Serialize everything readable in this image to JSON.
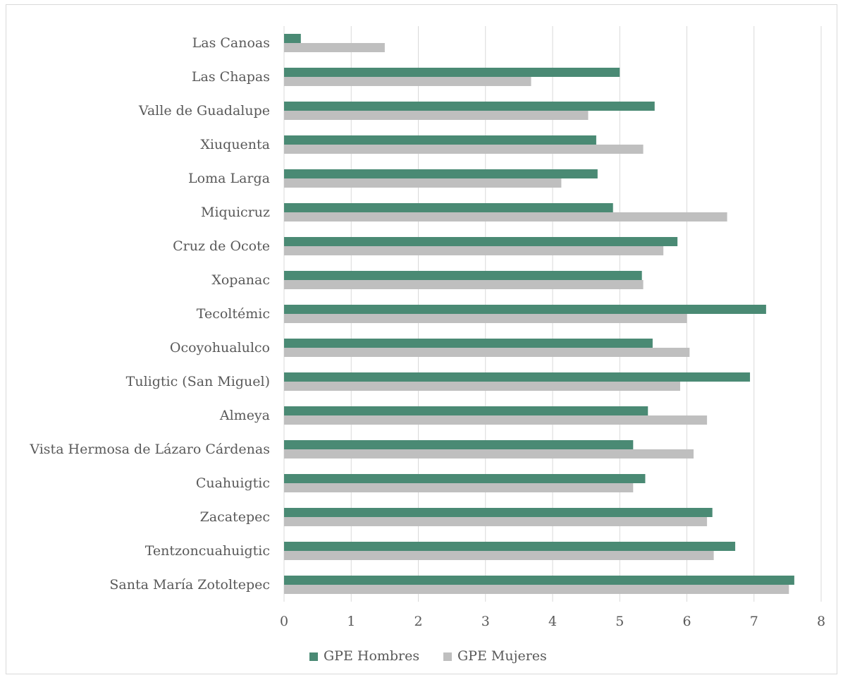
{
  "chart_data": {
    "type": "bar",
    "orientation": "horizontal",
    "categories": [
      "Las Canoas",
      "Las Chapas",
      "Valle de Guadalupe",
      "Xiuquenta",
      "Loma Larga",
      "Miquicruz",
      "Cruz de Ocote",
      "Xopanac",
      "Tecoltémic",
      "Ocoyohualulco",
      "Tuligtic (San Miguel)",
      "Almeya",
      "Vista Hermosa de Lázaro Cárdenas",
      "Cuahuigtic",
      "Zacatepec",
      "Tentzoncuahuigtic",
      "Santa María Zotoltepec"
    ],
    "series": [
      {
        "name": "GPE Hombres",
        "color": "#4a8a74",
        "values": [
          0.25,
          5.0,
          5.52,
          4.65,
          4.67,
          4.9,
          5.86,
          5.33,
          7.18,
          5.49,
          6.94,
          5.42,
          5.2,
          5.38,
          6.38,
          6.72,
          7.6
        ]
      },
      {
        "name": "GPE Mujeres",
        "color": "#bfbfbf",
        "values": [
          1.5,
          3.68,
          4.53,
          5.35,
          4.13,
          6.6,
          5.65,
          5.35,
          6.0,
          6.04,
          5.9,
          6.3,
          6.1,
          5.2,
          6.3,
          6.4,
          7.52
        ]
      }
    ],
    "xlim": [
      0,
      8
    ],
    "xticks": [
      "0",
      "1",
      "2",
      "3",
      "4",
      "5",
      "6",
      "7",
      "8"
    ],
    "title": "",
    "xlabel": "",
    "ylabel": "",
    "grid": "vertical",
    "legend_position": "bottom"
  }
}
